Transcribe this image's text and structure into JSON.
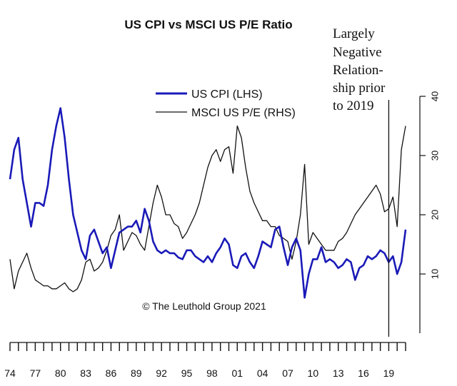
{
  "chart_data": {
    "type": "line",
    "title": "US CPI vs MSCI US P/E Ratio",
    "xlabel": "",
    "ylabel": "",
    "x_tick_labels": [
      "74",
      "77",
      "80",
      "83",
      "86",
      "89",
      "92",
      "95",
      "98",
      "01",
      "04",
      "07",
      "10",
      "13",
      "16",
      "19"
    ],
    "x_range": [
      1974,
      2021
    ],
    "y_right_ticks": [
      "10",
      "20",
      "30",
      "40"
    ],
    "y_right_range": [
      0,
      40
    ],
    "annotation": "Largely Negative Relation-ship prior to 2019",
    "annotation_lines": [
      "Largely",
      "Negative",
      "Relation-",
      "ship prior",
      "to 2019"
    ],
    "marker_x": 2019.0,
    "copyright": "© The Leuthold Group 2021",
    "legend": [
      {
        "name": "US CPI (LHS)",
        "color": "#1a1ab8"
      },
      {
        "name": "MSCI US P/E (RHS)",
        "color": "#111111"
      }
    ],
    "series": [
      {
        "name": "US CPI (LHS)",
        "axis": "left",
        "color": "#1a1ab8",
        "x": [
          1974.0,
          1974.5,
          1975.0,
          1975.5,
          1976.0,
          1976.5,
          1977.0,
          1977.5,
          1978.0,
          1978.5,
          1979.0,
          1979.5,
          1980.0,
          1980.5,
          1981.0,
          1981.5,
          1982.0,
          1982.5,
          1983.0,
          1983.5,
          1984.0,
          1984.5,
          1985.0,
          1985.5,
          1986.0,
          1986.5,
          1987.0,
          1987.5,
          1988.0,
          1988.5,
          1989.0,
          1989.5,
          1990.0,
          1990.5,
          1991.0,
          1991.5,
          1992.0,
          1992.5,
          1993.0,
          1993.5,
          1994.0,
          1994.5,
          1995.0,
          1995.5,
          1996.0,
          1996.5,
          1997.0,
          1997.5,
          1998.0,
          1998.5,
          1999.0,
          1999.5,
          2000.0,
          2000.5,
          2001.0,
          2001.5,
          2002.0,
          2002.5,
          2003.0,
          2003.5,
          2004.0,
          2004.5,
          2005.0,
          2005.5,
          2006.0,
          2006.5,
          2007.0,
          2007.5,
          2008.0,
          2008.5,
          2009.0,
          2009.5,
          2010.0,
          2010.5,
          2011.0,
          2011.5,
          2012.0,
          2012.5,
          2013.0,
          2013.5,
          2014.0,
          2014.5,
          2015.0,
          2015.5,
          2016.0,
          2016.5,
          2017.0,
          2017.5,
          2018.0,
          2018.5,
          2019.0,
          2019.5,
          2020.0,
          2020.5,
          2021.0
        ],
        "values": [
          26.0,
          31.0,
          33.0,
          26.0,
          22.0,
          18.0,
          22.0,
          22.0,
          21.5,
          25.0,
          31.0,
          35.0,
          38.0,
          33.0,
          26.0,
          20.0,
          17.0,
          14.0,
          12.5,
          16.5,
          17.5,
          15.5,
          13.5,
          14.5,
          11.0,
          14.0,
          17.0,
          17.5,
          18.0,
          18.0,
          19.0,
          17.0,
          21.0,
          19.0,
          15.5,
          14.0,
          13.5,
          14.0,
          13.5,
          13.5,
          12.8,
          12.5,
          14.0,
          14.0,
          13.0,
          12.5,
          12.0,
          13.0,
          12.0,
          13.5,
          14.5,
          16.0,
          15.0,
          11.5,
          11.0,
          13.0,
          13.5,
          12.0,
          11.0,
          13.0,
          15.5,
          15.0,
          14.5,
          17.5,
          18.0,
          14.5,
          11.5,
          14.5,
          16.0,
          14.0,
          6.0,
          10.0,
          12.5,
          12.5,
          14.5,
          12.0,
          12.5,
          12.0,
          11.0,
          11.5,
          12.5,
          12.0,
          9.0,
          11.0,
          11.5,
          13.0,
          12.5,
          13.0,
          14.0,
          13.5,
          12.0,
          13.0,
          10.0,
          12.0,
          17.5
        ]
      },
      {
        "name": "MSCI US P/E (RHS)",
        "axis": "right",
        "color": "#111111",
        "x": [
          1974.0,
          1974.5,
          1975.0,
          1975.5,
          1976.0,
          1976.5,
          1977.0,
          1977.5,
          1978.0,
          1978.5,
          1979.0,
          1979.5,
          1980.0,
          1980.5,
          1981.0,
          1981.5,
          1982.0,
          1982.5,
          1983.0,
          1983.5,
          1984.0,
          1984.5,
          1985.0,
          1985.5,
          1986.0,
          1986.5,
          1987.0,
          1987.5,
          1988.0,
          1988.5,
          1989.0,
          1989.5,
          1990.0,
          1990.5,
          1991.0,
          1991.5,
          1992.0,
          1992.5,
          1993.0,
          1993.5,
          1994.0,
          1994.5,
          1995.0,
          1995.5,
          1996.0,
          1996.5,
          1997.0,
          1997.5,
          1998.0,
          1998.5,
          1999.0,
          1999.5,
          2000.0,
          2000.5,
          2001.0,
          2001.5,
          2002.0,
          2002.5,
          2003.0,
          2003.5,
          2004.0,
          2004.5,
          2005.0,
          2005.5,
          2006.0,
          2006.5,
          2007.0,
          2007.5,
          2008.0,
          2008.5,
          2009.0,
          2009.5,
          2010.0,
          2010.5,
          2011.0,
          2011.5,
          2012.0,
          2012.5,
          2013.0,
          2013.5,
          2014.0,
          2014.5,
          2015.0,
          2015.5,
          2016.0,
          2016.5,
          2017.0,
          2017.5,
          2018.0,
          2018.5,
          2019.0,
          2019.5,
          2020.0,
          2020.5,
          2021.0
        ],
        "values": [
          12.5,
          7.5,
          10.5,
          12.0,
          13.5,
          11.0,
          9.0,
          8.5,
          8.0,
          8.0,
          7.5,
          7.5,
          8.0,
          8.5,
          7.5,
          7.0,
          7.5,
          9.0,
          12.0,
          12.5,
          10.5,
          11.0,
          12.0,
          14.0,
          16.5,
          17.5,
          20.0,
          14.0,
          15.5,
          17.0,
          16.5,
          15.0,
          14.0,
          18.0,
          22.0,
          25.0,
          23.0,
          20.0,
          20.0,
          18.5,
          18.0,
          16.0,
          17.0,
          18.5,
          20.0,
          22.0,
          25.0,
          28.0,
          30.0,
          31.0,
          29.0,
          31.0,
          31.5,
          27.0,
          35.0,
          33.0,
          28.0,
          24.0,
          22.0,
          20.5,
          19.0,
          19.0,
          18.0,
          18.0,
          16.5,
          16.0,
          15.5,
          12.5,
          15.5,
          20.0,
          28.5,
          15.0,
          17.0,
          16.0,
          15.0,
          14.0,
          14.0,
          14.0,
          15.5,
          16.0,
          17.0,
          18.5,
          20.0,
          21.0,
          22.0,
          23.0,
          24.0,
          25.0,
          23.5,
          20.5,
          21.0,
          23.0,
          18.0,
          31.0,
          35.0
        ]
      }
    ]
  }
}
